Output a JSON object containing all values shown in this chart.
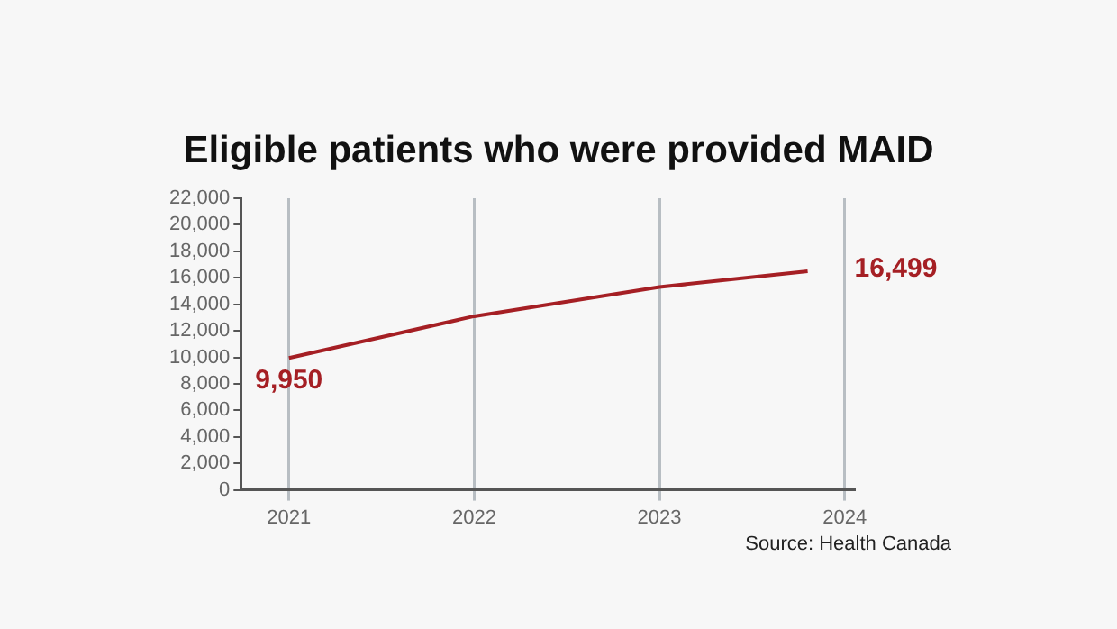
{
  "chart_data": {
    "type": "line",
    "title": "Eligible patients who were provided MAID",
    "x": [
      2021,
      2022,
      2023,
      2023.8
    ],
    "series": [
      {
        "color": "#a51f24",
        "values": [
          9950,
          13100,
          15300,
          16499
        ],
        "value_labels": [
          "9,950",
          null,
          null,
          "16,499"
        ]
      }
    ],
    "xlim": [
      2020.74,
      2024.05
    ],
    "xticks": [
      2021,
      2022,
      2023,
      2024
    ],
    "ylim": [
      0,
      22000
    ],
    "yticks": [
      {
        "value": 0,
        "label": "0"
      },
      {
        "value": 2000,
        "label": "2,000"
      },
      {
        "value": 4000,
        "label": "4,000"
      },
      {
        "value": 6000,
        "label": "6,000"
      },
      {
        "value": 8000,
        "label": "8,000"
      },
      {
        "value": 10000,
        "label": "10,000"
      },
      {
        "value": 12000,
        "label": "12,000"
      },
      {
        "value": 14000,
        "label": "14,000"
      },
      {
        "value": 16000,
        "label": "16,000"
      },
      {
        "value": 18000,
        "label": "18,000"
      },
      {
        "value": 20000,
        "label": "20,000"
      },
      {
        "value": 22000,
        "label": "22,000"
      }
    ],
    "grid": "x",
    "legend": false,
    "marker": "none",
    "line_style": "solid",
    "annotations": [
      "Source: Health Canada"
    ]
  }
}
